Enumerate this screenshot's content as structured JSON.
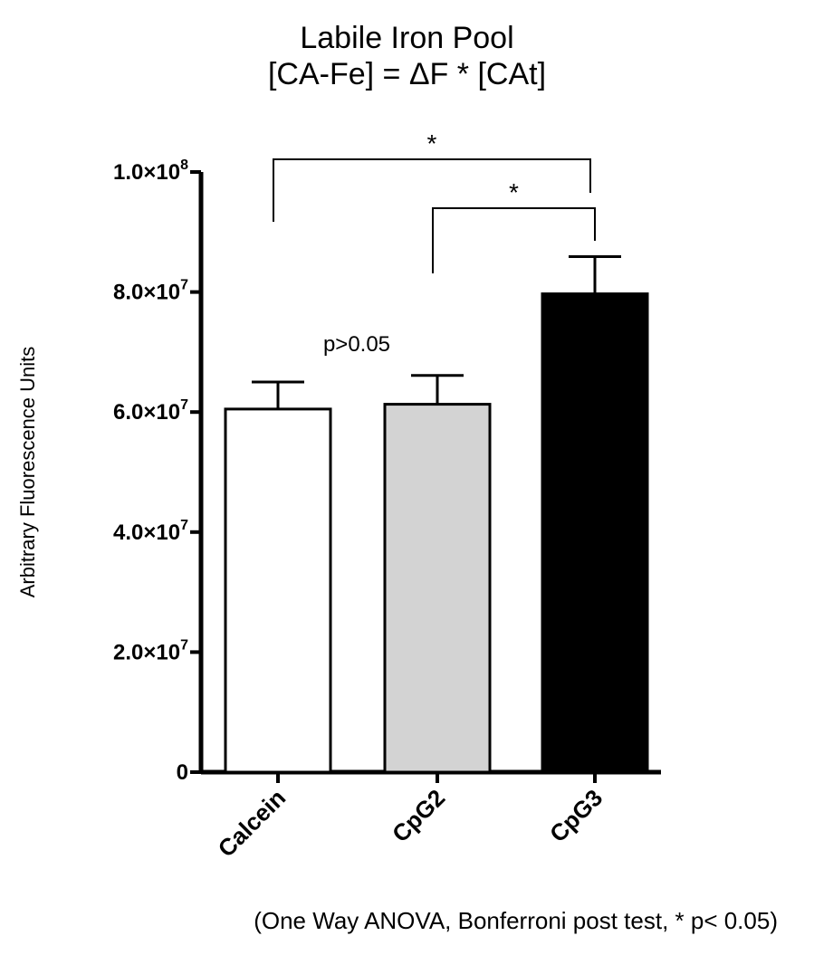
{
  "chart_data": {
    "type": "bar",
    "title": "Labile Iron Pool",
    "subtitle": "[CA-Fe] = ΔF * [CAt]",
    "ylabel": "Arbitrary Fluorescence Units",
    "xlabel": "",
    "categories": [
      "Calcein",
      "CpG2",
      "CpG3"
    ],
    "values": [
      60500000,
      61300000,
      79700000
    ],
    "errors": [
      4500000,
      4800000,
      6200000
    ],
    "bar_colors": [
      "#ffffff",
      "#d3d3d3",
      "#000000"
    ],
    "ylim": [
      0,
      100000000
    ],
    "yticks": [
      0,
      20000000,
      40000000,
      60000000,
      80000000,
      100000000
    ],
    "ytick_labels": [
      {
        "mantissa": "0",
        "exp": ""
      },
      {
        "mantissa": "2.0×10",
        "exp": "7"
      },
      {
        "mantissa": "4.0×10",
        "exp": "7"
      },
      {
        "mantissa": "6.0×10",
        "exp": "7"
      },
      {
        "mantissa": "8.0×10",
        "exp": "7"
      },
      {
        "mantissa": "1.0×10",
        "exp": "8"
      }
    ],
    "grid": false,
    "annotations": {
      "ns_text": "p>0.05",
      "brackets": [
        {
          "from": "Calcein",
          "to": "CpG3",
          "label": "*"
        },
        {
          "from": "CpG2",
          "to": "CpG3",
          "label": "*"
        }
      ]
    }
  },
  "footnote": "(One Way ANOVA, Bonferroni post test, * p< 0.05)"
}
